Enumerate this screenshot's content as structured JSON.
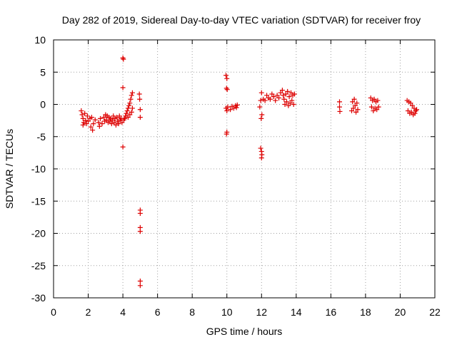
{
  "chart_data": {
    "type": "scatter",
    "title": "Day 282 of 2019, Sidereal Day-to-day VTEC variation (SDTVAR) for receiver froy",
    "xlabel": "GPS time / hours",
    "ylabel": "SDTVAR / TECUs",
    "xlim": [
      0,
      22
    ],
    "ylim": [
      -30,
      10
    ],
    "xticks": [
      0,
      2,
      4,
      6,
      8,
      10,
      12,
      14,
      16,
      18,
      20,
      22
    ],
    "yticks": [
      10,
      5,
      0,
      -5,
      -10,
      -15,
      -20,
      -25,
      -30
    ],
    "grid": true,
    "marker": "+",
    "color": "#dd0000",
    "series": [
      {
        "name": "SDTVAR",
        "points": [
          [
            1.6,
            -1.0
          ],
          [
            1.65,
            -1.6
          ],
          [
            1.7,
            -2.2
          ],
          [
            1.75,
            -2.8
          ],
          [
            1.8,
            -1.4
          ],
          [
            1.85,
            -2.5
          ],
          [
            1.9,
            -3.0
          ],
          [
            1.95,
            -1.8
          ],
          [
            2.0,
            -2.6
          ],
          [
            1.7,
            -3.2
          ],
          [
            2.1,
            -2.2
          ],
          [
            2.15,
            -3.5
          ],
          [
            2.2,
            -2.0
          ],
          [
            2.25,
            -4.0
          ],
          [
            2.3,
            -3.0
          ],
          [
            2.4,
            -2.4
          ],
          [
            2.6,
            -2.8
          ],
          [
            2.65,
            -3.4
          ],
          [
            2.7,
            -2.2
          ],
          [
            2.8,
            -3.0
          ],
          [
            2.9,
            -2.0
          ],
          [
            2.95,
            -2.6
          ],
          [
            3.0,
            -1.6
          ],
          [
            3.05,
            -2.4
          ],
          [
            3.1,
            -1.8
          ],
          [
            3.15,
            -2.8
          ],
          [
            3.2,
            -2.0
          ],
          [
            3.25,
            -2.6
          ],
          [
            3.3,
            -2.2
          ],
          [
            3.35,
            -3.0
          ],
          [
            3.4,
            -2.4
          ],
          [
            3.45,
            -1.8
          ],
          [
            3.5,
            -2.8
          ],
          [
            3.55,
            -2.2
          ],
          [
            3.6,
            -3.2
          ],
          [
            3.65,
            -2.0
          ],
          [
            3.7,
            -2.6
          ],
          [
            3.75,
            -3.0
          ],
          [
            3.8,
            -1.8
          ],
          [
            3.85,
            -2.4
          ],
          [
            3.9,
            -2.2
          ],
          [
            3.95,
            -2.8
          ],
          [
            4.0,
            7.2
          ],
          [
            4.03,
            7.0
          ],
          [
            4.0,
            2.6
          ],
          [
            4.0,
            -6.6
          ],
          [
            4.05,
            -2.4
          ],
          [
            4.1,
            -2.2
          ],
          [
            4.15,
            -1.8
          ],
          [
            4.2,
            -1.4
          ],
          [
            4.25,
            -1.0
          ],
          [
            4.3,
            -0.6
          ],
          [
            4.35,
            -0.2
          ],
          [
            4.4,
            0.2
          ],
          [
            4.45,
            0.8
          ],
          [
            4.5,
            1.4
          ],
          [
            4.55,
            1.8
          ],
          [
            4.3,
            -2.0
          ],
          [
            4.4,
            -1.6
          ],
          [
            4.5,
            -1.2
          ],
          [
            4.55,
            -0.6
          ],
          [
            4.95,
            1.6
          ],
          [
            4.97,
            0.8
          ],
          [
            5.0,
            -0.8
          ],
          [
            5.0,
            -2.0
          ],
          [
            5.0,
            -16.4
          ],
          [
            5.0,
            -16.9
          ],
          [
            5.0,
            -19.1
          ],
          [
            5.0,
            -19.7
          ],
          [
            5.0,
            -27.4
          ],
          [
            5.0,
            -28.1
          ],
          [
            9.95,
            4.5
          ],
          [
            10.0,
            4.0
          ],
          [
            9.98,
            2.5
          ],
          [
            10.02,
            2.3
          ],
          [
            9.95,
            -0.6
          ],
          [
            10.0,
            -1.0
          ],
          [
            10.05,
            -0.4
          ],
          [
            10.0,
            -4.3
          ],
          [
            9.98,
            -4.6
          ],
          [
            10.2,
            -0.8
          ],
          [
            10.3,
            -0.3
          ],
          [
            10.4,
            -0.6
          ],
          [
            10.5,
            -0.2
          ],
          [
            10.55,
            -0.5
          ],
          [
            10.6,
            -0.1
          ],
          [
            11.9,
            -0.4
          ],
          [
            11.95,
            0.6
          ],
          [
            12.0,
            1.8
          ],
          [
            12.02,
            -1.6
          ],
          [
            11.98,
            -2.2
          ],
          [
            11.95,
            -6.8
          ],
          [
            12.0,
            -7.3
          ],
          [
            12.02,
            -7.8
          ],
          [
            12.0,
            -8.3
          ],
          [
            12.1,
            0.8
          ],
          [
            12.2,
            0.6
          ],
          [
            12.3,
            1.4
          ],
          [
            12.4,
            1.0
          ],
          [
            12.5,
            0.8
          ],
          [
            12.6,
            1.6
          ],
          [
            12.7,
            1.2
          ],
          [
            12.8,
            0.6
          ],
          [
            12.9,
            1.4
          ],
          [
            13.0,
            1.0
          ],
          [
            13.1,
            1.8
          ],
          [
            13.2,
            2.2
          ],
          [
            13.25,
            1.4
          ],
          [
            13.3,
            0.8
          ],
          [
            13.35,
            0.0
          ],
          [
            13.4,
            1.6
          ],
          [
            13.45,
            0.4
          ],
          [
            13.5,
            2.0
          ],
          [
            13.55,
            -0.2
          ],
          [
            13.6,
            1.2
          ],
          [
            13.65,
            0.2
          ],
          [
            13.7,
            1.8
          ],
          [
            13.75,
            0.6
          ],
          [
            13.8,
            1.4
          ],
          [
            13.85,
            0.0
          ],
          [
            13.9,
            1.6
          ],
          [
            16.5,
            0.4
          ],
          [
            16.5,
            -0.4
          ],
          [
            16.52,
            -1.1
          ],
          [
            17.2,
            -1.0
          ],
          [
            17.25,
            0.4
          ],
          [
            17.3,
            -0.6
          ],
          [
            17.35,
            0.8
          ],
          [
            17.4,
            -0.2
          ],
          [
            17.45,
            -1.2
          ],
          [
            17.5,
            0.2
          ],
          [
            17.55,
            -0.8
          ],
          [
            18.3,
            1.0
          ],
          [
            18.35,
            -0.4
          ],
          [
            18.4,
            0.6
          ],
          [
            18.45,
            -1.0
          ],
          [
            18.5,
            0.8
          ],
          [
            18.55,
            -0.6
          ],
          [
            18.6,
            0.4
          ],
          [
            18.65,
            -0.8
          ],
          [
            18.7,
            0.6
          ],
          [
            18.75,
            -0.4
          ],
          [
            20.4,
            0.6
          ],
          [
            20.45,
            -1.0
          ],
          [
            20.5,
            0.4
          ],
          [
            20.55,
            -1.4
          ],
          [
            20.6,
            0.2
          ],
          [
            20.65,
            -1.2
          ],
          [
            20.7,
            -0.2
          ],
          [
            20.75,
            -1.6
          ],
          [
            20.8,
            -0.6
          ],
          [
            20.85,
            -1.4
          ],
          [
            20.9,
            -1.0
          ],
          [
            20.95,
            -0.8
          ]
        ]
      }
    ]
  }
}
